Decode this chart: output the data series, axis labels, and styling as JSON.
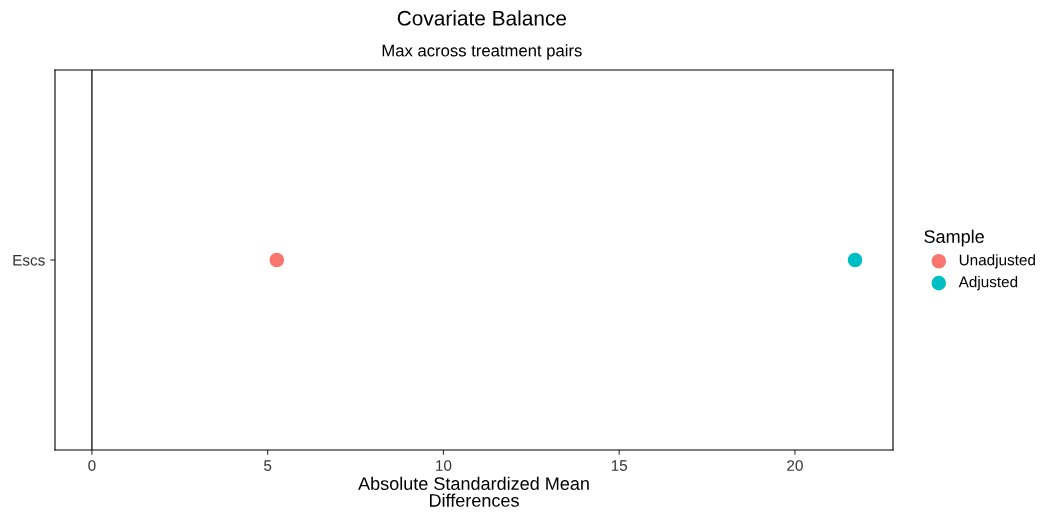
{
  "chart_data": {
    "type": "scatter",
    "title": "Covariate Balance",
    "subtitle": "Max across treatment pairs",
    "xlabel": "Absolute Standardized Mean\nDifferences",
    "orientation": "horizontal",
    "categories": [
      "Escs"
    ],
    "legend_title": "Sample",
    "legend": "right",
    "series": [
      {
        "name": "Unadjusted",
        "color": "#f8766d",
        "values": [
          5.26
        ]
      },
      {
        "name": "Adjusted",
        "color": "#00bfc4",
        "values": [
          21.71
        ]
      }
    ],
    "xlim": [
      -1.05,
      22.79
    ],
    "xticks": [
      0,
      5,
      10,
      15,
      20
    ],
    "marker": "circle",
    "grid": false,
    "ref_lines": [
      {
        "axis": "x",
        "value": 0,
        "color": "#000000"
      }
    ]
  }
}
